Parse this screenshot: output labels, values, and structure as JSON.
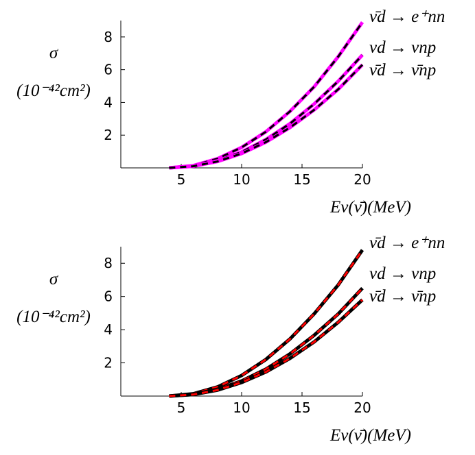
{
  "chart_data": [
    {
      "type": "line",
      "xlabel": "Eν(ν̄)(MeV)",
      "ylabel": [
        "σ",
        "(10⁻⁴²cm²)"
      ],
      "x": [
        4,
        6,
        8,
        10,
        12,
        14,
        16,
        18,
        20
      ],
      "xlim": [
        0,
        20
      ],
      "xticks": [
        5,
        10,
        15,
        20
      ],
      "ylim": [
        0,
        9
      ],
      "yticks": [
        2,
        4,
        6,
        8
      ],
      "series": [
        {
          "name": "ν̄d → e⁺nn",
          "color": "#ff00ff",
          "dash_color": "#000000",
          "values": [
            0,
            0.14,
            0.56,
            1.25,
            2.2,
            3.45,
            4.95,
            6.8,
            8.9
          ]
        },
        {
          "name": "νd → νnp",
          "color": "#ff00ff",
          "dash_color": "#000000",
          "values": [
            0,
            0.11,
            0.43,
            0.97,
            1.73,
            2.7,
            3.9,
            5.3,
            6.9
          ]
        },
        {
          "name": "ν̄d → ν̄np",
          "color": "#ff00ff",
          "dash_color": "#000000",
          "values": [
            0,
            0.1,
            0.39,
            0.88,
            1.57,
            2.46,
            3.54,
            4.8,
            6.3
          ]
        }
      ]
    },
    {
      "type": "line",
      "xlabel": "Eν(ν̄)(MeV)",
      "ylabel": [
        "σ",
        "(10⁻⁴²cm²)"
      ],
      "x": [
        4,
        6,
        8,
        10,
        12,
        14,
        16,
        18,
        20
      ],
      "xlim": [
        0,
        20
      ],
      "xticks": [
        5,
        10,
        15,
        20
      ],
      "ylim": [
        0,
        9
      ],
      "yticks": [
        2,
        4,
        6,
        8
      ],
      "series": [
        {
          "name": "ν̄d → e⁺nn",
          "color": "#000000",
          "dash_color": "#ff0000",
          "values": [
            0,
            0.14,
            0.55,
            1.24,
            2.2,
            3.44,
            4.95,
            6.7,
            8.8
          ]
        },
        {
          "name": "νd → νnp",
          "color": "#000000",
          "dash_color": "#ff0000",
          "values": [
            0,
            0.1,
            0.41,
            0.91,
            1.62,
            2.54,
            3.66,
            4.95,
            6.5
          ]
        },
        {
          "name": "ν̄d → ν̄np",
          "color": "#000000",
          "dash_color": "#ff0000",
          "values": [
            0,
            0.09,
            0.36,
            0.82,
            1.45,
            2.27,
            3.26,
            4.45,
            5.8
          ]
        }
      ]
    }
  ]
}
